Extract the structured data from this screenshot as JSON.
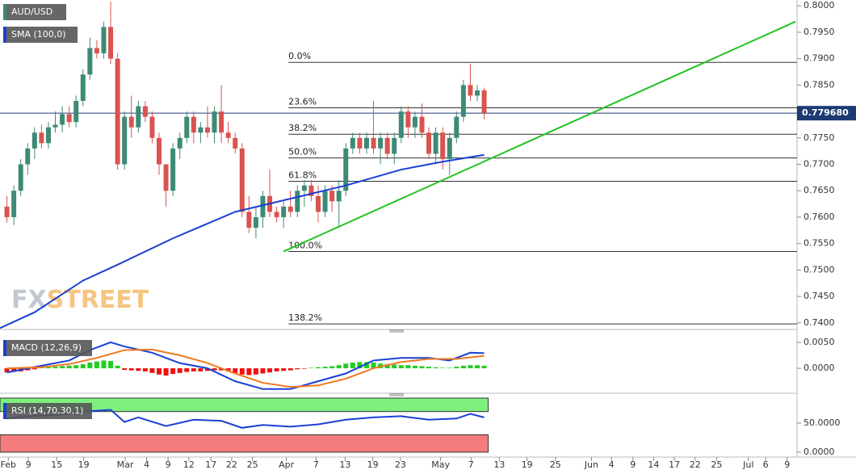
{
  "chart_data": [
    {
      "type": "candlestick",
      "title": "AUD/USD",
      "x": [
        1,
        2,
        3,
        4,
        5,
        6,
        7,
        8,
        9,
        10,
        11,
        12,
        13,
        14,
        15,
        16,
        17,
        18,
        19,
        20,
        21,
        22,
        23,
        24,
        25,
        26,
        27,
        28,
        29,
        30,
        31,
        32,
        33,
        34,
        35,
        36,
        37,
        38,
        39,
        40,
        41,
        42,
        43,
        44,
        45,
        46,
        47,
        48,
        49,
        50,
        51,
        52,
        53,
        54,
        55,
        56,
        57,
        58,
        59,
        60,
        61,
        62,
        63,
        64,
        65,
        66,
        67,
        68,
        69,
        70
      ],
      "open": [
        0.762,
        0.76,
        0.765,
        0.77,
        0.773,
        0.776,
        0.774,
        0.777,
        0.7775,
        0.7795,
        0.778,
        0.782,
        0.787,
        0.792,
        0.791,
        0.796,
        0.79,
        0.77,
        0.779,
        0.777,
        0.781,
        0.779,
        0.775,
        0.77,
        0.765,
        0.773,
        0.775,
        0.779,
        0.776,
        0.777,
        0.776,
        0.78,
        0.776,
        0.775,
        0.773,
        0.761,
        0.758,
        0.76,
        0.764,
        0.761,
        0.76,
        0.762,
        0.761,
        0.765,
        0.766,
        0.764,
        0.761,
        0.765,
        0.763,
        0.765,
        0.773,
        0.775,
        0.773,
        0.775,
        0.773,
        0.775,
        0.772,
        0.775,
        0.78,
        0.777,
        0.779,
        0.776,
        0.772,
        0.776,
        0.771,
        0.775,
        0.779,
        0.785,
        0.783,
        0.784
      ],
      "high": [
        0.764,
        0.766,
        0.771,
        0.774,
        0.777,
        0.7775,
        0.778,
        0.78,
        0.781,
        0.781,
        0.783,
        0.788,
        0.794,
        0.7935,
        0.797,
        0.8008,
        0.791,
        0.78,
        0.783,
        0.782,
        0.782,
        0.78,
        0.776,
        0.77,
        0.774,
        0.776,
        0.78,
        0.78,
        0.778,
        0.781,
        0.781,
        0.785,
        0.778,
        0.776,
        0.774,
        0.764,
        0.762,
        0.765,
        0.769,
        0.762,
        0.763,
        0.765,
        0.766,
        0.767,
        0.767,
        0.766,
        0.766,
        0.766,
        0.767,
        0.774,
        0.776,
        0.776,
        0.776,
        0.782,
        0.776,
        0.776,
        0.776,
        0.781,
        0.781,
        0.78,
        0.7815,
        0.777,
        0.777,
        0.777,
        0.776,
        0.78,
        0.786,
        0.789,
        0.785,
        0.7845
      ],
      "low": [
        0.759,
        0.7585,
        0.764,
        0.768,
        0.771,
        0.773,
        0.773,
        0.776,
        0.776,
        0.777,
        0.777,
        0.781,
        0.786,
        0.79,
        0.79,
        0.789,
        0.769,
        0.769,
        0.775,
        0.776,
        0.778,
        0.774,
        0.768,
        0.762,
        0.764,
        0.771,
        0.774,
        0.774,
        0.774,
        0.775,
        0.774,
        0.774,
        0.774,
        0.772,
        0.76,
        0.757,
        0.756,
        0.758,
        0.76,
        0.759,
        0.758,
        0.76,
        0.76,
        0.762,
        0.763,
        0.759,
        0.76,
        0.761,
        0.758,
        0.764,
        0.772,
        0.772,
        0.772,
        0.772,
        0.77,
        0.771,
        0.77,
        0.774,
        0.775,
        0.775,
        0.775,
        0.771,
        0.77,
        0.769,
        0.768,
        0.774,
        0.778,
        0.782,
        0.782,
        0.7785
      ],
      "close": [
        0.76,
        0.765,
        0.77,
        0.773,
        0.776,
        0.774,
        0.777,
        0.7775,
        0.7795,
        0.778,
        0.782,
        0.787,
        0.792,
        0.791,
        0.796,
        0.79,
        0.77,
        0.779,
        0.777,
        0.781,
        0.779,
        0.775,
        0.77,
        0.765,
        0.773,
        0.775,
        0.779,
        0.776,
        0.777,
        0.776,
        0.78,
        0.776,
        0.775,
        0.773,
        0.761,
        0.758,
        0.76,
        0.764,
        0.761,
        0.76,
        0.762,
        0.761,
        0.765,
        0.766,
        0.764,
        0.761,
        0.765,
        0.763,
        0.765,
        0.773,
        0.775,
        0.773,
        0.775,
        0.773,
        0.775,
        0.772,
        0.775,
        0.78,
        0.777,
        0.779,
        0.776,
        0.772,
        0.776,
        0.771,
        0.775,
        0.779,
        0.785,
        0.783,
        0.784,
        0.7797
      ],
      "up_color": "#3d8a76",
      "down_color": "#d9534f",
      "indicator": {
        "name": "SMA (100,0)",
        "color": "#1a3fd4",
        "x": [
          0,
          5,
          12,
          17,
          25,
          34,
          42,
          50,
          58,
          64,
          70
        ],
        "values": [
          0.739,
          0.742,
          0.748,
          0.751,
          0.756,
          0.761,
          0.7635,
          0.766,
          0.769,
          0.7705,
          0.7718
        ]
      },
      "trendline": {
        "color": "#22c322",
        "x": [
          41,
          115
        ],
        "values": [
          0.7535,
          0.797
        ]
      },
      "fib": {
        "start": 41.7,
        "levels": [
          0.7893,
          0.7807,
          0.7757,
          0.7712,
          0.7668,
          0.7535,
          0.7398
        ],
        "labels": [
          "0.0%",
          "23.6%",
          "38.2%",
          "50.0%",
          "61.8%",
          "100.0%",
          "138.2%"
        ]
      },
      "last_price": {
        "value": 0.77968,
        "label": "0.779680"
      },
      "watermark": [
        "FX",
        "STREET"
      ],
      "ylim": [
        0.7389,
        0.8011
      ],
      "yticks": [
        {
          "value": 0.8,
          "label": "0.8000"
        },
        {
          "value": 0.795,
          "label": "0.7950"
        },
        {
          "value": 0.79,
          "label": "0.7900"
        },
        {
          "value": 0.785,
          "label": "0.7850"
        },
        {
          "value": 0.78,
          "label": "0.7800"
        },
        {
          "value": 0.775,
          "label": "0.7750"
        },
        {
          "value": 0.77,
          "label": "0.7700"
        },
        {
          "value": 0.765,
          "label": "0.7650"
        },
        {
          "value": 0.76,
          "label": "0.7600"
        },
        {
          "value": 0.755,
          "label": "0.7550"
        },
        {
          "value": 0.75,
          "label": "0.7500"
        },
        {
          "value": 0.745,
          "label": "0.7450"
        },
        {
          "value": 0.74,
          "label": "0.7400"
        }
      ],
      "xlim": [
        0,
        115
      ],
      "xticks": [
        {
          "value": 1.2,
          "label": "Feb"
        },
        {
          "value": 4.1,
          "label": "9"
        },
        {
          "value": 8.2,
          "label": "15"
        },
        {
          "value": 12.1,
          "label": "19"
        },
        {
          "value": 18.1,
          "label": "Mar"
        },
        {
          "value": 21.2,
          "label": "4"
        },
        {
          "value": 24.3,
          "label": "9"
        },
        {
          "value": 27.3,
          "label": "12"
        },
        {
          "value": 30.5,
          "label": "17"
        },
        {
          "value": 33.5,
          "label": "22"
        },
        {
          "value": 36.5,
          "label": "25"
        },
        {
          "value": 41.4,
          "label": "Apr"
        },
        {
          "value": 45.7,
          "label": "7"
        },
        {
          "value": 49.9,
          "label": "13"
        },
        {
          "value": 53.9,
          "label": "19"
        },
        {
          "value": 57.9,
          "label": "23"
        },
        {
          "value": 63.7,
          "label": "May"
        },
        {
          "value": 68.1,
          "label": "7"
        },
        {
          "value": 72.2,
          "label": "13"
        },
        {
          "value": 76.2,
          "label": "19"
        },
        {
          "value": 80.3,
          "label": "25"
        },
        {
          "value": 85.5,
          "label": "Jun"
        },
        {
          "value": 88.4,
          "label": "4"
        },
        {
          "value": 91.5,
          "label": "9"
        },
        {
          "value": 94.5,
          "label": "14"
        },
        {
          "value": 97.5,
          "label": "17"
        },
        {
          "value": 100.5,
          "label": "22"
        },
        {
          "value": 103.6,
          "label": "25"
        },
        {
          "value": 108.2,
          "label": "Jul"
        },
        {
          "value": 110.7,
          "label": "6"
        },
        {
          "value": 113.8,
          "label": "9"
        }
      ]
    },
    {
      "type": "macd",
      "title": "MACD (12,26,9)",
      "histogram": [
        -0.0008,
        -0.0007,
        -0.0006,
        -0.0004,
        -0.0002,
        0.0001,
        0.0002,
        0.0003,
        0.0004,
        0.0005,
        0.0006,
        0.0008,
        0.0011,
        0.0013,
        0.0015,
        0.0014,
        0.0005,
        -0.0003,
        -0.0004,
        -0.0005,
        -0.0006,
        -0.0009,
        -0.0012,
        -0.0014,
        -0.0011,
        -0.0009,
        -0.0007,
        -0.0006,
        -0.0006,
        -0.0005,
        -0.0004,
        -0.0004,
        -0.0006,
        -0.0009,
        -0.0012,
        -0.0013,
        -0.0012,
        -0.001,
        -0.0008,
        -0.0006,
        -0.0005,
        -0.0004,
        -0.0002,
        -0.0001,
        0.0001,
        0.0002,
        0.0003,
        0.0004,
        0.0006,
        0.0009,
        0.0011,
        0.0012,
        0.0012,
        0.0011,
        0.0009,
        0.0008,
        0.0007,
        0.0006,
        0.0006,
        0.0005,
        0.0004,
        0.0003,
        0.0002,
        0.0001,
        0.0001,
        0.0003,
        0.0005,
        0.0006,
        0.0006,
        0.0005
      ],
      "up_color": "#22cc22",
      "down_color": "#ee1111",
      "series": [
        {
          "color": "#1a3fd4",
          "x": [
            1,
            6,
            10,
            13,
            16,
            18,
            22,
            26,
            30,
            34,
            38,
            42,
            46,
            50,
            54,
            58,
            62,
            65,
            68,
            70
          ],
          "values": [
            -0.0008,
            0.0005,
            0.0015,
            0.0035,
            0.005,
            0.0042,
            0.003,
            0.001,
            0,
            -0.0025,
            -0.004,
            -0.004,
            -0.0025,
            -0.001,
            0.0015,
            0.002,
            0.002,
            0.0015,
            0.003,
            0.0029
          ]
        },
        {
          "color": "#f07820",
          "x": [
            1,
            6,
            10,
            14,
            18,
            22,
            26,
            30,
            34,
            38,
            42,
            46,
            50,
            54,
            58,
            62,
            66,
            70
          ],
          "values": [
            0,
            0.0002,
            0.0008,
            0.002,
            0.0035,
            0.0036,
            0.0025,
            0.001,
            -0.001,
            -0.0028,
            -0.0036,
            -0.0033,
            -0.002,
            0,
            0.0012,
            0.0018,
            0.0018,
            0.0024
          ]
        }
      ],
      "ylim": [
        -0.0045,
        0.0067
      ],
      "yticks": [
        {
          "value": 0.005,
          "label": "0.0050"
        },
        {
          "value": 0,
          "label": "0.0000"
        }
      ]
    },
    {
      "type": "rsi",
      "title": "RSI (14,70,30,1)",
      "overbought": 70,
      "oversold": 30,
      "band_colors": [
        "#7ef07e",
        "#f47c7c"
      ],
      "series": [
        {
          "color": "#1a3fd4",
          "x": [
            1,
            4,
            8,
            12,
            16,
            18,
            20,
            24,
            28,
            32,
            35,
            38,
            42,
            46,
            50,
            54,
            58,
            62,
            66,
            68,
            70
          ],
          "values": [
            58,
            62,
            64,
            70,
            73,
            52,
            60,
            45,
            56,
            54,
            42,
            47,
            44,
            48,
            56,
            60,
            62,
            56,
            58,
            66,
            60
          ]
        }
      ],
      "ylim": [
        -7,
        96
      ],
      "yticks": [
        {
          "value": 50,
          "label": "50.0000"
        },
        {
          "value": 0,
          "label": "0.0000"
        }
      ]
    }
  ]
}
